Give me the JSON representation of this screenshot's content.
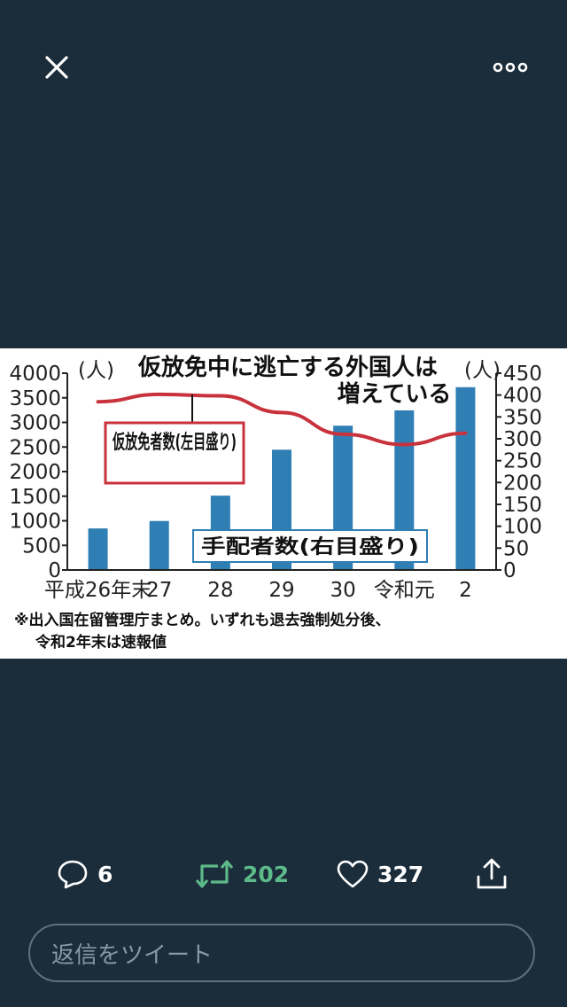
{
  "toolbar": {
    "close_icon": "close-icon",
    "more_icon": "more-horizontal-icon"
  },
  "chart_data": {
    "type": "bar",
    "title_lines": [
      "仮放免中に逃亡する外国人は",
      "増えている"
    ],
    "categories": [
      "平成26年末",
      "27",
      "28",
      "29",
      "30",
      "令和元",
      "2"
    ],
    "left_axis": {
      "unit": "(人)",
      "ylim": [
        0,
        4000
      ],
      "ticks": [
        0,
        500,
        1000,
        1500,
        2000,
        2500,
        3000,
        3500,
        4000
      ]
    },
    "right_axis": {
      "unit": "(人)",
      "ylim": [
        0,
        450
      ],
      "ticks": [
        0,
        50,
        100,
        150,
        200,
        250,
        300,
        350,
        400,
        450
      ]
    },
    "series": [
      {
        "name": "手配者数(右目盛り)",
        "kind": "bar",
        "axis": "right",
        "color": "#2f7fb5",
        "values": [
          95,
          112,
          170,
          275,
          330,
          365,
          418
        ]
      },
      {
        "name": "仮放免者数(左目盛り)",
        "kind": "line",
        "axis": "left",
        "color": "#c8323c",
        "values": [
          3420,
          3570,
          3540,
          3200,
          2760,
          2550,
          2780
        ]
      }
    ],
    "note_lines": [
      "※出入国在留管理庁まとめ。いずれも退去強制処分後、",
      "令和2年末は速報値"
    ]
  },
  "actions": {
    "reply": {
      "icon": "reply-icon",
      "count": "6"
    },
    "retweet": {
      "icon": "retweet-icon",
      "count": "202",
      "color": "#5dba89"
    },
    "like": {
      "icon": "heart-icon",
      "count": "327"
    },
    "share": {
      "icon": "share-icon"
    }
  },
  "reply_input": {
    "placeholder": "返信をツイート"
  }
}
